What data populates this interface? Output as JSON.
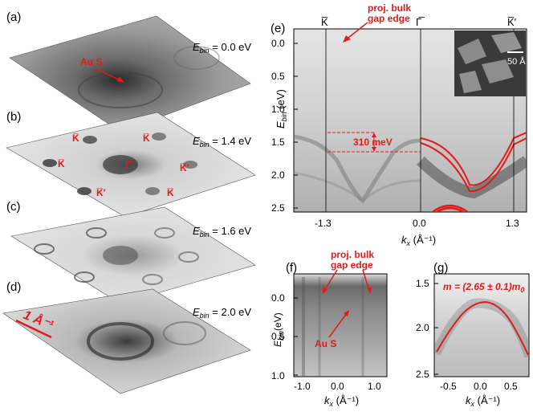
{
  "panels": {
    "a": {
      "label": "(a)",
      "ebin": "E",
      "ebin_sub": "bin",
      "ebin_val": " = 0.0 eV",
      "annotation": "Au S"
    },
    "b": {
      "label": "(b)",
      "ebin": "E",
      "ebin_sub": "bin",
      "ebin_val": " = 1.4 eV",
      "points": {
        "k1": "K̅",
        "k2": "K̅",
        "k3": "K̅",
        "gamma": "Γ̅",
        "kp1": "K̅′",
        "kp2": "K̅′",
        "k4": "K̅",
        "k5": "K̅"
      }
    },
    "c": {
      "label": "(c)",
      "ebin": "E",
      "ebin_sub": "bin",
      "ebin_val": " = 1.6 eV"
    },
    "d": {
      "label": "(d)",
      "ebin": "E",
      "ebin_sub": "bin",
      "ebin_val": " = 2.0 eV",
      "scale": "1 Å⁻¹"
    },
    "e": {
      "label": "(e)",
      "top_labels": {
        "k": "K̅",
        "gamma": "Γ̅",
        "kprime": "K̅′"
      },
      "annotation_line1": "proj. bulk",
      "annotation_line2": "gap edge",
      "splitting": "310 meV",
      "inset_scale": "50 Å",
      "ylabel": "E",
      "ylabel_sub": "bin",
      "ylabel_unit": " (eV)",
      "xlabel": "k",
      "xlabel_sub": "x",
      "xlabel_unit": " (Å⁻¹)",
      "yticks": [
        "0.0",
        "0.5",
        "1.0",
        "1.5",
        "2.0",
        "2.5"
      ],
      "xticks": [
        "-1.3",
        "0.0",
        "1.3"
      ]
    },
    "f": {
      "label": "(f)",
      "annotation_line1": "proj. bulk",
      "annotation_line2": "gap edge",
      "annotation2": "Au S",
      "ylabel": "E",
      "ylabel_sub": "bin",
      "ylabel_unit": "(eV)",
      "xlabel": "k",
      "xlabel_sub": "x",
      "xlabel_unit": " (Å⁻¹)",
      "yticks": [
        "0.0",
        "0.5",
        "1.0"
      ],
      "xticks": [
        "-1.0",
        "0.0",
        "1.0"
      ]
    },
    "g": {
      "label": "(g)",
      "mass": "m = (2.65 ± 0.1)m",
      "mass_sub": "0",
      "xlabel": "k",
      "xlabel_sub": "x",
      "xlabel_unit": " (Å⁻¹)",
      "yticks": [
        "1.5",
        "2.0",
        "2.5"
      ],
      "xticks": [
        "-0.5",
        "0.0",
        "0.5"
      ]
    }
  },
  "colors": {
    "accent": "#e01b1b"
  }
}
